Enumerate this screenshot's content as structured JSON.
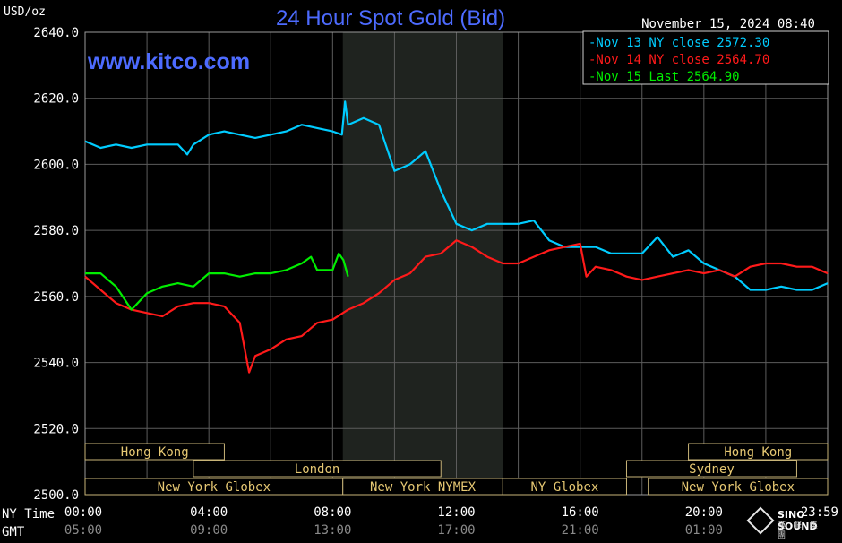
{
  "chart_data": {
    "type": "line",
    "title": "24 Hour Spot Gold (Bid)",
    "ylabel": "USD/oz",
    "ylim": [
      2500,
      2640
    ],
    "yticks": [
      "2500.0",
      "2520.0",
      "2540.0",
      "2560.0",
      "2580.0",
      "2600.0",
      "2620.0",
      "2640.0"
    ],
    "ytick_values": [
      2500,
      2520,
      2540,
      2560,
      2580,
      2600,
      2620,
      2640
    ],
    "xlim": [
      0,
      24
    ],
    "xticks_ny": [
      "00:00",
      "04:00",
      "08:00",
      "12:00",
      "16:00",
      "20:00",
      "23:59"
    ],
    "xticks_gmt": [
      "05:00",
      "09:00",
      "13:00",
      "17:00",
      "21:00",
      "01:00"
    ],
    "xtick_hours": [
      0,
      4,
      8,
      12,
      16,
      20,
      24
    ],
    "x_axis_label_ny": "NY Time",
    "x_axis_label_gmt": "GMT",
    "date": "November 15, 2024 08:40",
    "watermark": "www.kitco.com",
    "shaded_hours": [
      8.33,
      13.5
    ],
    "grid": true,
    "legend_placement": "top-right",
    "series": [
      {
        "name": "Nov 13 NY close 2572.30",
        "color": "#00ccff",
        "x": [
          0,
          0.5,
          1,
          1.5,
          2,
          2.5,
          3,
          3.3,
          3.5,
          4,
          4.5,
          5,
          5.5,
          6,
          6.5,
          7,
          7.5,
          8,
          8.3,
          8.4,
          8.5,
          9,
          9.5,
          10,
          10.5,
          11,
          11.5,
          12,
          12.5,
          13,
          13.5,
          14,
          14.5,
          15,
          15.5,
          16,
          16.5,
          17,
          17.5,
          18,
          18.5,
          19,
          19.5,
          20,
          20.5,
          21,
          21.5,
          22,
          22.5,
          23,
          23.5,
          24
        ],
        "y": [
          2607,
          2605,
          2606,
          2605,
          2606,
          2606,
          2606,
          2603,
          2606,
          2609,
          2610,
          2609,
          2608,
          2609,
          2610,
          2612,
          2611,
          2610,
          2609,
          2619,
          2612,
          2614,
          2612,
          2598,
          2600,
          2604,
          2592,
          2582,
          2580,
          2582,
          2582,
          2582,
          2583,
          2577,
          2575,
          2575,
          2575,
          2573,
          2573,
          2573,
          2578,
          2572,
          2574,
          2570,
          2568,
          2566,
          2562,
          2562,
          2563,
          2562,
          2562,
          2564
        ]
      },
      {
        "name": "Nov 14 NY close 2564.70",
        "color": "#ff1a1a",
        "x": [
          0,
          0.5,
          1,
          1.5,
          2,
          2.5,
          3,
          3.5,
          4,
          4.5,
          5,
          5.3,
          5.5,
          6,
          6.5,
          7,
          7.5,
          8,
          8.5,
          9,
          9.5,
          10,
          10.5,
          11,
          11.5,
          12,
          12.5,
          13,
          13.5,
          14,
          14.5,
          15,
          15.5,
          16,
          16.2,
          16.5,
          17,
          17.5,
          18,
          18.5,
          19,
          19.5,
          20,
          20.5,
          21,
          21.5,
          22,
          22.5,
          23,
          23.5,
          24
        ],
        "y": [
          2566,
          2562,
          2558,
          2556,
          2555,
          2554,
          2557,
          2558,
          2558,
          2557,
          2552,
          2537,
          2542,
          2544,
          2547,
          2548,
          2552,
          2553,
          2556,
          2558,
          2561,
          2565,
          2567,
          2572,
          2573,
          2577,
          2575,
          2572,
          2570,
          2570,
          2572,
          2574,
          2575,
          2576,
          2566,
          2569,
          2568,
          2566,
          2565,
          2566,
          2567,
          2568,
          2567,
          2568,
          2566,
          2569,
          2570,
          2570,
          2569,
          2569,
          2567
        ]
      },
      {
        "name": "Nov 15 Last 2564.90",
        "color": "#00ee00",
        "x": [
          0,
          0.5,
          1,
          1.5,
          2,
          2.5,
          3,
          3.5,
          4,
          4.5,
          5,
          5.5,
          6,
          6.5,
          7,
          7.3,
          7.5,
          8,
          8.2,
          8.35,
          8.5
        ],
        "y": [
          2567,
          2567,
          2563,
          2556,
          2561,
          2563,
          2564,
          2563,
          2567,
          2567,
          2566,
          2567,
          2567,
          2568,
          2570,
          2572,
          2568,
          2568,
          2573,
          2571,
          2566
        ]
      }
    ],
    "market_bands": [
      {
        "label": "Hong Kong",
        "start": 0,
        "end": 4.5,
        "row": 0
      },
      {
        "label": "London",
        "start": 3.5,
        "end": 11.5,
        "row": 1
      },
      {
        "label": "New York Globex",
        "start": 0,
        "end": 8.33,
        "row": 2
      },
      {
        "label": "New York NYMEX",
        "start": 8.33,
        "end": 13.5,
        "row": 2
      },
      {
        "label": "NY Globex",
        "start": 13.5,
        "end": 17.5,
        "row": 2
      },
      {
        "label": "Hong Kong",
        "start": 19.5,
        "end": 24,
        "row": 0
      },
      {
        "label": "Sydney",
        "start": 17.5,
        "end": 23.0,
        "row": 1
      },
      {
        "label": "New York Globex",
        "start": 18.2,
        "end": 24,
        "row": 2
      }
    ]
  },
  "brand": {
    "logo_name": "SINO SOUND",
    "logo_sub": "漢 聲 集 團"
  }
}
